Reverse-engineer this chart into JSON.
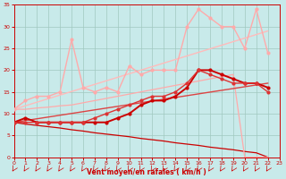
{
  "background_color": "#c8eaea",
  "grid_color": "#a0c8c0",
  "xlabel": "Vent moyen/en rafales ( km/h )",
  "xlabel_color": "#cc0000",
  "tick_color": "#cc0000",
  "xmin": 0,
  "xmax": 23,
  "ymin": 0,
  "ymax": 35,
  "yticks": [
    0,
    5,
    10,
    15,
    20,
    25,
    30,
    35
  ],
  "xticks": [
    0,
    1,
    2,
    3,
    4,
    5,
    6,
    7,
    8,
    9,
    10,
    11,
    12,
    13,
    14,
    15,
    16,
    17,
    18,
    19,
    20,
    21,
    22,
    23
  ],
  "lines": [
    {
      "x": [
        0,
        1,
        2,
        3,
        4,
        5,
        6,
        7,
        8,
        9,
        10,
        11,
        12,
        13,
        14,
        15,
        16,
        17,
        18,
        19,
        20,
        21,
        22
      ],
      "y": [
        8,
        7.6,
        7.3,
        7,
        6.7,
        6.3,
        6,
        5.6,
        5.3,
        5,
        4.7,
        4.3,
        4,
        3.7,
        3.3,
        3,
        2.7,
        2.3,
        2,
        1.7,
        1.3,
        1,
        0
      ],
      "color": "#cc0000",
      "lw": 0.9,
      "marker": null,
      "ms": 0
    },
    {
      "x": [
        0,
        1,
        2,
        3,
        4,
        5,
        6,
        7,
        8,
        9,
        10,
        11,
        12,
        13,
        14,
        15,
        16,
        17,
        18,
        19,
        20,
        21,
        22
      ],
      "y": [
        11,
        11,
        11.3,
        11.5,
        11.8,
        12,
        12.5,
        13,
        13.5,
        14,
        14.5,
        15,
        15.5,
        16,
        16.5,
        17,
        17.5,
        18,
        18.5,
        19,
        0,
        0,
        0
      ],
      "color": "#ffaaaa",
      "lw": 0.9,
      "marker": null,
      "ms": 0
    },
    {
      "x": [
        0,
        22
      ],
      "y": [
        11,
        29
      ],
      "color": "#ffbbbb",
      "lw": 1.0,
      "marker": null,
      "ms": 0
    },
    {
      "x": [
        0,
        22
      ],
      "y": [
        8,
        17
      ],
      "color": "#dd4444",
      "lw": 1.0,
      "marker": null,
      "ms": 0
    },
    {
      "x": [
        0,
        1,
        2,
        3,
        4,
        5,
        6,
        7,
        8,
        9,
        10,
        11,
        12,
        13,
        14,
        15,
        16,
        17,
        18,
        19,
        20,
        21,
        22
      ],
      "y": [
        11,
        13,
        14,
        14,
        15,
        27,
        16,
        15,
        16,
        15,
        21,
        19,
        20,
        20,
        20,
        30,
        34,
        32,
        30,
        30,
        25,
        34,
        24
      ],
      "color": "#ffaaaa",
      "lw": 1.0,
      "marker": "o",
      "ms": 2
    },
    {
      "x": [
        0,
        1,
        2,
        3,
        4,
        5,
        6,
        7,
        8,
        9,
        10,
        11,
        12,
        13,
        14,
        15,
        16,
        17,
        18,
        19,
        20,
        21,
        22
      ],
      "y": [
        8,
        9,
        8,
        8,
        8,
        8,
        8,
        8,
        8,
        9,
        10,
        12,
        13,
        13,
        14,
        16,
        20,
        20,
        19,
        18,
        17,
        17,
        16
      ],
      "color": "#cc0000",
      "lw": 1.4,
      "marker": "o",
      "ms": 2
    },
    {
      "x": [
        0,
        1,
        2,
        3,
        4,
        5,
        6,
        7,
        8,
        9,
        10,
        11,
        12,
        13,
        14,
        15,
        16,
        17,
        18,
        19,
        20,
        21,
        22
      ],
      "y": [
        8,
        8,
        8,
        8,
        8,
        8,
        8,
        9,
        10,
        11,
        12,
        13,
        14,
        14,
        15,
        17,
        20,
        19,
        18,
        17,
        17,
        17,
        15
      ],
      "color": "#dd3333",
      "lw": 1.0,
      "marker": "o",
      "ms": 2
    }
  ]
}
